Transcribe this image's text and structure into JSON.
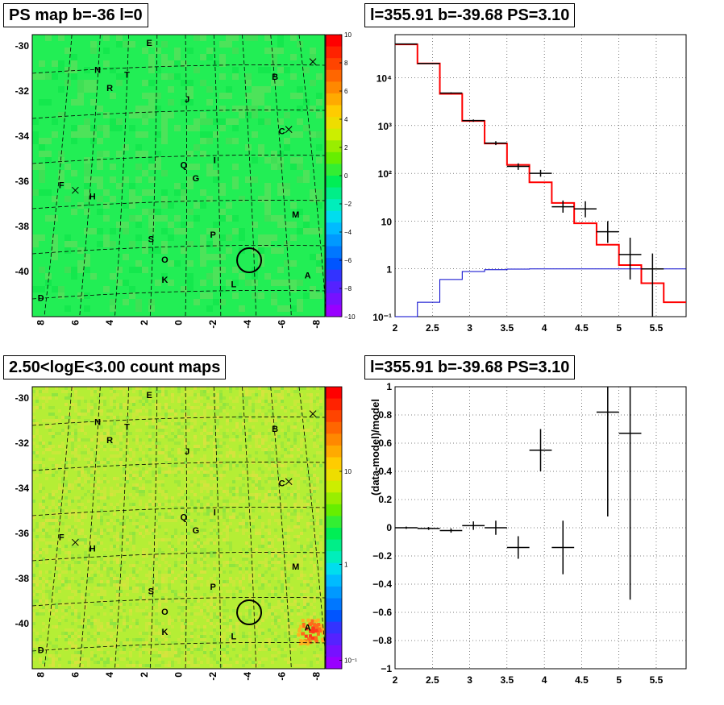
{
  "panels": {
    "ps_map_title": "PS map b=-36 l=0",
    "spectrum_title": "l=355.91 b=-39.68 PS=3.10",
    "count_map_title": "2.50<logE<3.00 count maps",
    "residual_title": "l=355.91 b=-39.68 PS=3.10"
  },
  "colors": {
    "map_bg": "#22ee55",
    "count_bg": "#b5ee35",
    "model": "#ff0000",
    "background_model": "#0000cc",
    "data": "#000000"
  },
  "icons": [
    "circle-marker-icon",
    "cross-marker-icon"
  ],
  "chart_data": [
    {
      "type": "heatmap",
      "panel": "ps_map",
      "x_ticks": [
        "8",
        "6",
        "4",
        "2",
        "0",
        "-2",
        "-4",
        "-6",
        "-8"
      ],
      "y_ticks": [
        "-30",
        "-32",
        "-34",
        "-36",
        "-38",
        "-40"
      ],
      "colorbar_ticks": [
        "10",
        "8",
        "6",
        "4",
        "2",
        "0",
        "−2",
        "−4",
        "−6",
        "−8",
        "−10"
      ],
      "zlim": [
        -10,
        10
      ],
      "sources": [
        {
          "label": "E",
          "l": 1.7,
          "b": -29.9
        },
        {
          "label": "N",
          "l": 4.7,
          "b": -31.1
        },
        {
          "label": "T",
          "l": 3.0,
          "b": -31.3
        },
        {
          "label": "B",
          "l": -5.6,
          "b": -31.4
        },
        {
          "label": "R",
          "l": 4.0,
          "b": -31.9
        },
        {
          "label": "J",
          "l": -0.5,
          "b": -32.4
        },
        {
          "label": "C",
          "l": -6.0,
          "b": -33.8
        },
        {
          "label": "Q",
          "l": -0.3,
          "b": -35.3
        },
        {
          "label": "I",
          "l": -2.1,
          "b": -35.1
        },
        {
          "label": "G",
          "l": -1.0,
          "b": -35.9
        },
        {
          "label": "F",
          "l": 6.8,
          "b": -36.2
        },
        {
          "label": "H",
          "l": 5.0,
          "b": -36.7
        },
        {
          "label": "M",
          "l": -6.8,
          "b": -37.5
        },
        {
          "label": "P",
          "l": -2.0,
          "b": -38.4
        },
        {
          "label": "S",
          "l": 1.6,
          "b": -38.6
        },
        {
          "label": "O",
          "l": 0.8,
          "b": -39.5
        },
        {
          "label": "K",
          "l": 0.8,
          "b": -40.4
        },
        {
          "label": "L",
          "l": -3.2,
          "b": -40.6
        },
        {
          "label": "A",
          "l": -7.5,
          "b": -40.2
        },
        {
          "label": "D",
          "l": 8.0,
          "b": -41.2
        }
      ],
      "circle": {
        "l": -4.1,
        "b": -39.5
      },
      "crosses": [
        {
          "l": -7.8,
          "b": -30.7
        },
        {
          "l": -6.4,
          "b": -33.7
        },
        {
          "l": 6.0,
          "b": -36.4
        }
      ]
    },
    {
      "type": "line",
      "panel": "spectrum",
      "xlim": [
        2,
        5.9
      ],
      "ylim": [
        0.1,
        80000
      ],
      "y_log": true,
      "grid": true,
      "x_ticks": [
        "2",
        "2.5",
        "3",
        "3.5",
        "4",
        "4.5",
        "5",
        "5.5"
      ],
      "y_ticks": [
        "10⁻¹",
        "1",
        "10",
        "10²",
        "10³",
        "10⁴"
      ],
      "series": [
        {
          "role": "model",
          "style": "step",
          "edges": [
            2.0,
            2.3,
            2.6,
            2.9,
            3.2,
            3.5,
            3.8,
            4.1,
            4.4,
            4.7,
            5.0,
            5.3,
            5.6,
            5.9
          ],
          "values": [
            50000,
            20000,
            4600,
            1250,
            420,
            150,
            65,
            24,
            9,
            3.2,
            1.2,
            0.5,
            0.2
          ]
        },
        {
          "role": "background",
          "style": "step",
          "edges": [
            2.0,
            2.3,
            2.6,
            2.9,
            3.2,
            3.5,
            3.8,
            4.1,
            4.4,
            4.7,
            5.0,
            5.3,
            5.6,
            5.9
          ],
          "values": [
            0.09,
            0.2,
            0.6,
            0.88,
            0.96,
            0.99,
            1.0,
            1.0,
            1.0,
            1.0,
            1.0,
            1.0,
            1.0
          ]
        },
        {
          "role": "data",
          "style": "points",
          "points": [
            {
              "x": 2.15,
              "y": 51000,
              "xerr": 0.15,
              "ylo": 50000,
              "yhi": 52000
            },
            {
              "x": 2.45,
              "y": 20000,
              "xerr": 0.15,
              "ylo": 19500,
              "yhi": 20500
            },
            {
              "x": 2.75,
              "y": 4800,
              "xerr": 0.15,
              "ylo": 4650,
              "yhi": 4950
            },
            {
              "x": 3.05,
              "y": 1270,
              "xerr": 0.15,
              "ylo": 1200,
              "yhi": 1340
            },
            {
              "x": 3.35,
              "y": 430,
              "xerr": 0.15,
              "ylo": 390,
              "yhi": 470
            },
            {
              "x": 3.65,
              "y": 140,
              "xerr": 0.15,
              "ylo": 118,
              "yhi": 162
            },
            {
              "x": 3.95,
              "y": 100,
              "xerr": 0.15,
              "ylo": 85,
              "yhi": 118
            },
            {
              "x": 4.25,
              "y": 20,
              "xerr": 0.15,
              "ylo": 15,
              "yhi": 27
            },
            {
              "x": 4.55,
              "y": 18,
              "xerr": 0.15,
              "ylo": 12,
              "yhi": 26
            },
            {
              "x": 4.85,
              "y": 6,
              "xerr": 0.15,
              "ylo": 3.5,
              "yhi": 10
            },
            {
              "x": 5.15,
              "y": 2,
              "xerr": 0.15,
              "ylo": 0.6,
              "yhi": 4.5
            },
            {
              "x": 5.45,
              "y": 1,
              "xerr": 0.15,
              "ylo": 0.09,
              "yhi": 2.1
            }
          ]
        }
      ]
    },
    {
      "type": "heatmap",
      "panel": "count_map",
      "x_ticks": [
        "8",
        "6",
        "4",
        "2",
        "0",
        "-2",
        "-4",
        "-6",
        "-8"
      ],
      "y_ticks": [
        "-30",
        "-32",
        "-34",
        "-36",
        "-38",
        "-40"
      ],
      "colorbar_ticks": [
        "10",
        "1",
        "10⁻¹"
      ],
      "z_log": true,
      "sources": [
        {
          "label": "E",
          "l": 1.7,
          "b": -29.9
        },
        {
          "label": "N",
          "l": 4.7,
          "b": -31.1
        },
        {
          "label": "T",
          "l": 3.0,
          "b": -31.3
        },
        {
          "label": "B",
          "l": -5.6,
          "b": -31.4
        },
        {
          "label": "R",
          "l": 4.0,
          "b": -31.9
        },
        {
          "label": "J",
          "l": -0.5,
          "b": -32.4
        },
        {
          "label": "C",
          "l": -6.0,
          "b": -33.8
        },
        {
          "label": "Q",
          "l": -0.3,
          "b": -35.3
        },
        {
          "label": "I",
          "l": -2.1,
          "b": -35.1
        },
        {
          "label": "G",
          "l": -1.0,
          "b": -35.9
        },
        {
          "label": "F",
          "l": 6.8,
          "b": -36.2
        },
        {
          "label": "H",
          "l": 5.0,
          "b": -36.7
        },
        {
          "label": "M",
          "l": -6.8,
          "b": -37.5
        },
        {
          "label": "P",
          "l": -2.0,
          "b": -38.4
        },
        {
          "label": "S",
          "l": 1.6,
          "b": -38.6
        },
        {
          "label": "O",
          "l": 0.8,
          "b": -39.5
        },
        {
          "label": "K",
          "l": 0.8,
          "b": -40.4
        },
        {
          "label": "L",
          "l": -3.2,
          "b": -40.6
        },
        {
          "label": "A",
          "l": -7.5,
          "b": -40.2
        },
        {
          "label": "D",
          "l": 8.0,
          "b": -41.2
        }
      ],
      "circle": {
        "l": -4.1,
        "b": -39.5
      },
      "crosses": [
        {
          "l": -7.8,
          "b": -30.7
        },
        {
          "l": -6.4,
          "b": -33.7
        },
        {
          "l": 6.0,
          "b": -36.4
        }
      ]
    },
    {
      "type": "scatter",
      "panel": "residual",
      "ylabel": "(data-model)/model",
      "xlim": [
        2,
        5.9
      ],
      "ylim": [
        -1,
        1
      ],
      "grid": true,
      "x_ticks": [
        "2",
        "2.5",
        "3",
        "3.5",
        "4",
        "4.5",
        "5",
        "5.5"
      ],
      "y_ticks": [
        "−1",
        "−0.8",
        "−0.6",
        "−0.4",
        "−0.2",
        "0",
        "0.2",
        "0.4",
        "0.6",
        "0.8",
        "1"
      ],
      "points": [
        {
          "x": 2.15,
          "y": 0.0,
          "xerr": 0.15,
          "yerr": 0.008
        },
        {
          "x": 2.45,
          "y": -0.005,
          "xerr": 0.15,
          "yerr": 0.01
        },
        {
          "x": 2.75,
          "y": -0.02,
          "xerr": 0.15,
          "yerr": 0.015
        },
        {
          "x": 3.05,
          "y": 0.015,
          "xerr": 0.15,
          "yerr": 0.03
        },
        {
          "x": 3.35,
          "y": 0.0,
          "xerr": 0.15,
          "yerr": 0.05
        },
        {
          "x": 3.65,
          "y": -0.14,
          "xerr": 0.15,
          "yerr": 0.08
        },
        {
          "x": 3.95,
          "y": 0.55,
          "xerr": 0.15,
          "yerr": 0.15
        },
        {
          "x": 4.25,
          "y": -0.14,
          "xerr": 0.15,
          "yerr": 0.19
        },
        {
          "x": 4.85,
          "y": 0.82,
          "xerr": 0.15,
          "yerr": 0.74
        },
        {
          "x": 5.15,
          "y": 0.67,
          "xerr": 0.15,
          "yerr": 1.18
        }
      ]
    }
  ]
}
